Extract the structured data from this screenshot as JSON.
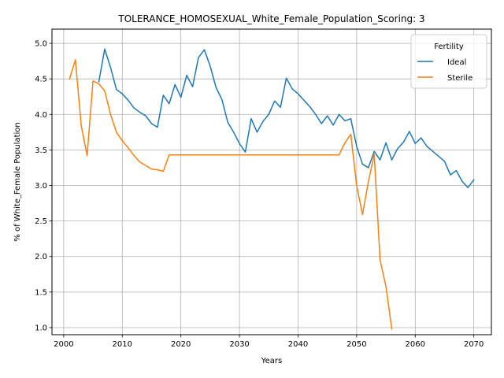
{
  "chart_data": {
    "type": "line",
    "title": "TOLERANCE_HOMOSEXUAL_White_Female_Population_Scoring: 3",
    "xlabel": "Years",
    "ylabel": "% of White_Female Population",
    "xlim": [
      1998,
      2073
    ],
    "ylim": [
      0.9,
      5.2
    ],
    "xticks": [
      2000,
      2010,
      2020,
      2030,
      2040,
      2050,
      2060,
      2070
    ],
    "yticks": [
      1.0,
      1.5,
      2.0,
      2.5,
      3.0,
      3.5,
      4.0,
      4.5,
      5.0
    ],
    "xtick_labels": [
      "2000",
      "2010",
      "2020",
      "2030",
      "2040",
      "2050",
      "2060",
      "2070"
    ],
    "ytick_labels": [
      "1.0",
      "1.5",
      "2.0",
      "2.5",
      "3.0",
      "3.5",
      "4.0",
      "4.5",
      "5.0"
    ],
    "grid": true,
    "legend": {
      "title": "Fertility",
      "position": "top-right"
    },
    "series": [
      {
        "name": "Ideal",
        "color": "#1f77b4",
        "x": [
          2006,
          2007,
          2008,
          2009,
          2010,
          2011,
          2012,
          2013,
          2014,
          2015,
          2016,
          2017,
          2018,
          2019,
          2020,
          2021,
          2022,
          2023,
          2024,
          2025,
          2026,
          2027,
          2028,
          2029,
          2030,
          2031,
          2032,
          2033,
          2034,
          2035,
          2036,
          2037,
          2038,
          2039,
          2040,
          2041,
          2042,
          2043,
          2044,
          2045,
          2046,
          2047,
          2048,
          2049,
          2050,
          2051,
          2052,
          2053,
          2054,
          2055,
          2056,
          2057,
          2058,
          2059,
          2060,
          2061,
          2062,
          2063,
          2064,
          2065,
          2066,
          2067,
          2068,
          2069,
          2070
        ],
        "values": [
          4.46,
          4.92,
          4.66,
          4.35,
          4.29,
          4.2,
          4.09,
          4.03,
          3.98,
          3.87,
          3.82,
          4.27,
          4.15,
          4.42,
          4.24,
          4.55,
          4.39,
          4.8,
          4.91,
          4.68,
          4.38,
          4.21,
          3.89,
          3.75,
          3.59,
          3.47,
          3.94,
          3.75,
          3.9,
          4.0,
          4.19,
          4.1,
          4.51,
          4.36,
          4.29,
          4.2,
          4.11,
          4.0,
          3.87,
          3.98,
          3.85,
          4.0,
          3.91,
          3.94,
          3.55,
          3.3,
          3.25,
          3.48,
          3.36,
          3.6,
          3.36,
          3.52,
          3.61,
          3.76,
          3.59,
          3.67,
          3.55,
          3.48,
          3.41,
          3.34,
          3.15,
          3.21,
          3.06,
          2.97,
          3.08
        ]
      },
      {
        "name": "Sterile",
        "color": "#ff7f0e",
        "x": [
          2001,
          2002,
          2003,
          2004,
          2005,
          2006,
          2007,
          2008,
          2009,
          2010,
          2011,
          2012,
          2013,
          2014,
          2015,
          2016,
          2017,
          2018,
          2019,
          2020,
          2021,
          2022,
          2023,
          2024,
          2025,
          2026,
          2027,
          2028,
          2029,
          2030,
          2031,
          2032,
          2033,
          2034,
          2035,
          2036,
          2037,
          2038,
          2039,
          2040,
          2041,
          2042,
          2043,
          2044,
          2045,
          2046,
          2047,
          2048,
          2049,
          2050,
          2051,
          2052,
          2053,
          2054,
          2055,
          2056
        ],
        "values": [
          4.5,
          4.77,
          3.84,
          3.42,
          4.47,
          4.43,
          4.33,
          4.0,
          3.75,
          3.63,
          3.53,
          3.42,
          3.33,
          3.28,
          3.23,
          3.22,
          3.2,
          3.43,
          3.43,
          3.43,
          3.43,
          3.43,
          3.43,
          3.43,
          3.43,
          3.43,
          3.43,
          3.43,
          3.43,
          3.43,
          3.43,
          3.43,
          3.43,
          3.43,
          3.43,
          3.43,
          3.43,
          3.43,
          3.43,
          3.43,
          3.43,
          3.43,
          3.43,
          3.43,
          3.43,
          3.43,
          3.43,
          3.6,
          3.72,
          3.0,
          2.59,
          3.05,
          3.44,
          1.95,
          1.58,
          0.98
        ]
      }
    ]
  }
}
